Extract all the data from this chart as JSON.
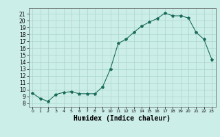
{
  "x": [
    0,
    1,
    2,
    3,
    4,
    5,
    6,
    7,
    8,
    9,
    10,
    11,
    12,
    13,
    14,
    15,
    16,
    17,
    18,
    19,
    20,
    21,
    22,
    23
  ],
  "y": [
    9.5,
    8.7,
    8.3,
    9.3,
    9.6,
    9.7,
    9.4,
    9.4,
    9.4,
    10.4,
    13.0,
    16.7,
    17.3,
    18.3,
    19.2,
    19.8,
    20.3,
    21.1,
    20.7,
    20.7,
    20.4,
    18.3,
    17.3,
    14.4
  ],
  "line_color": "#1a6b5a",
  "marker": "*",
  "marker_size": 3,
  "bg_color": "#cceee8",
  "grid_color": "#aad4cc",
  "xlabel": "Humidex (Indice chaleur)",
  "xlabel_fontsize": 7,
  "ylim": [
    7.5,
    21.8
  ],
  "xlim": [
    -0.5,
    23.5
  ],
  "yticks": [
    8,
    9,
    10,
    11,
    12,
    13,
    14,
    15,
    16,
    17,
    18,
    19,
    20,
    21
  ],
  "xticks": [
    0,
    1,
    2,
    3,
    4,
    5,
    6,
    7,
    8,
    9,
    10,
    11,
    12,
    13,
    14,
    15,
    16,
    17,
    18,
    19,
    20,
    21,
    22,
    23
  ]
}
